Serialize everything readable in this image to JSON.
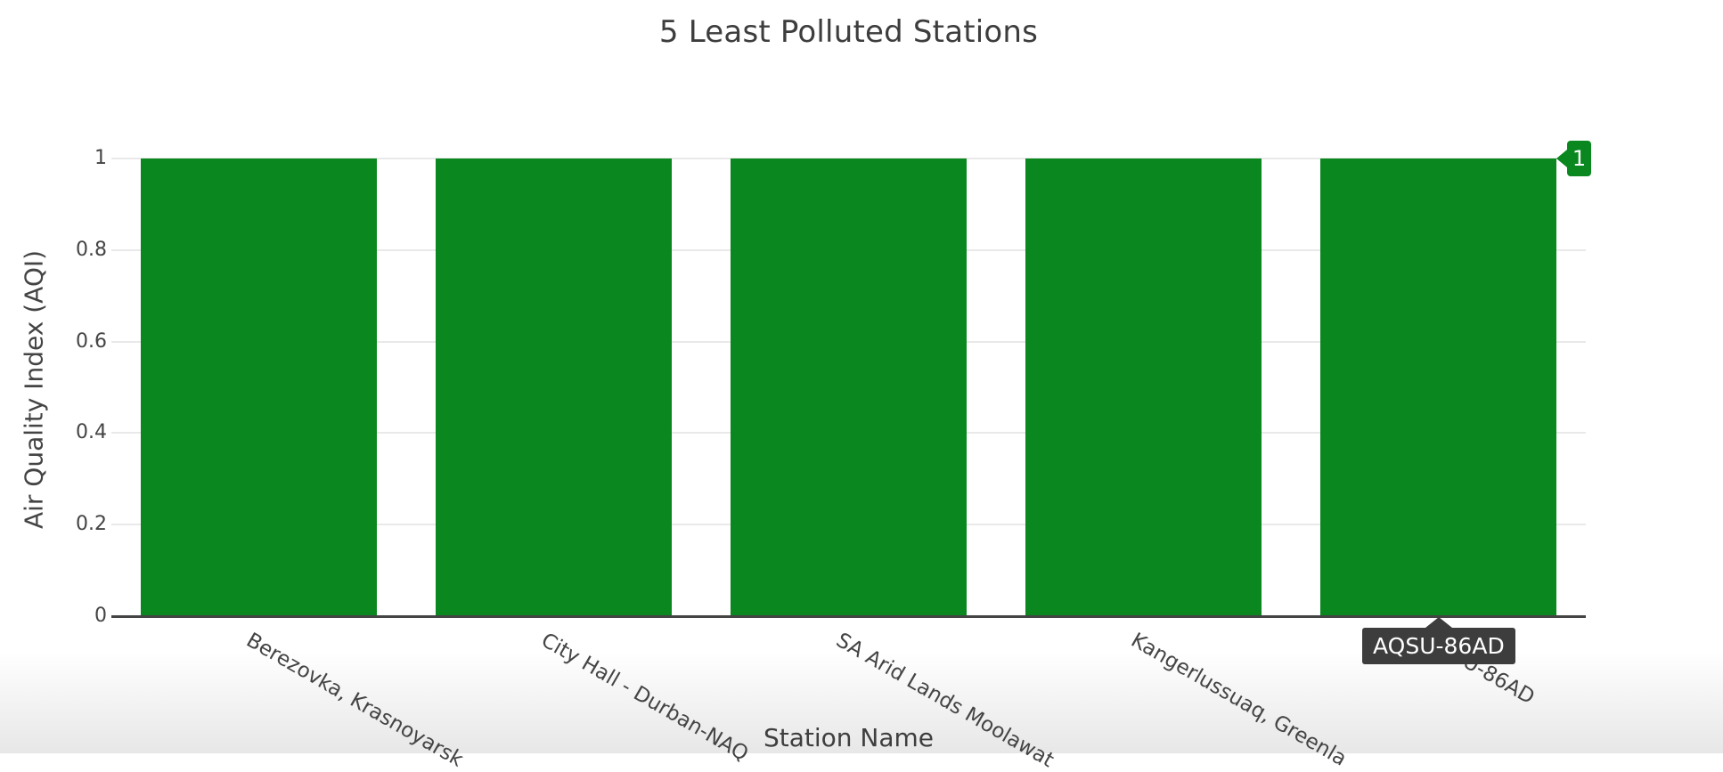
{
  "chart": {
    "title": "5 Least Polluted Stations",
    "xlabel": "Station Name",
    "ylabel": "Air Quality Index (AQI)",
    "colors": {
      "bar": "#0a871e",
      "grid": "#e9e9e9",
      "axis_line": "#444444",
      "text": "#444444",
      "tooltip_bg": "#3d3d3d",
      "hover_text": "#ffffff"
    },
    "hover": {
      "y_badge_text": "1",
      "x_tooltip_text": "AQSU-86AD"
    }
  },
  "chart_data": {
    "type": "bar",
    "title": "5 Least Polluted Stations",
    "xlabel": "Station Name",
    "ylabel": "Air Quality Index (AQI)",
    "categories": [
      "Berezovka, Krasnoyarsk",
      "City Hall - Durban-NAQ",
      "SA Arid Lands Moolawat",
      "Kangerlussuaq, Greenla",
      "AQSU-86AD"
    ],
    "values": [
      1,
      1,
      1,
      1,
      1
    ],
    "bar_color_hex": "#0a871e",
    "ylim": [
      0,
      1
    ],
    "yticks": [
      0,
      0.2,
      0.4,
      0.6,
      0.8,
      1
    ],
    "grid": true,
    "legend": false,
    "xtick_angle_deg": 30,
    "hovered_bar": "AQSU-86AD",
    "hovered_value_label": "1"
  }
}
